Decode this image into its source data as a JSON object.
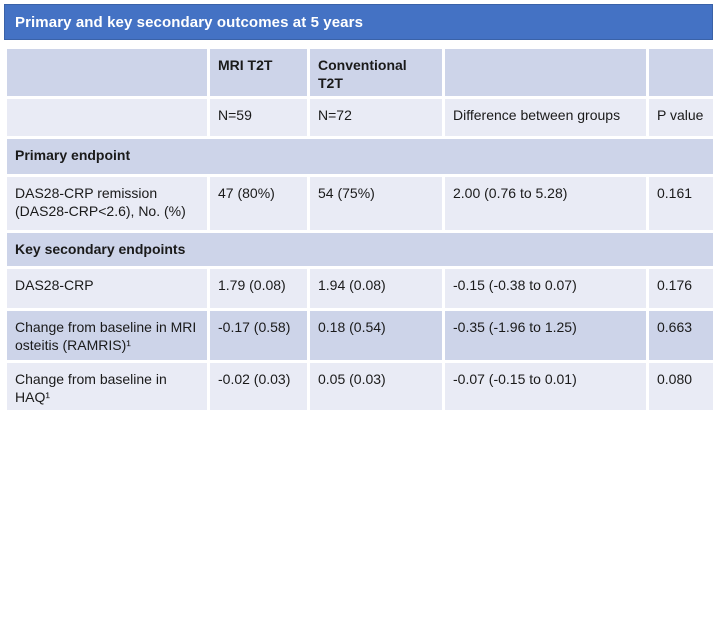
{
  "title_bar": {
    "text": "Primary and key secondary outcomes at 5 years",
    "background_color": "#4472C4",
    "text_color": "#FFFFFF"
  },
  "colors": {
    "accent_blue": "#4472C4",
    "band_dark": "#CDD4E9",
    "band_light": "#E9EBF5",
    "cell_text": "#1A1A1A"
  },
  "table": {
    "column_headers": {
      "group1": "MRI T2T",
      "group2": "Conventional T2T"
    },
    "subheaders": {
      "group1_n": "N=59",
      "group2_n": "N=72",
      "difference": "Difference between groups",
      "pvalue": "P value"
    },
    "sections": {
      "primary": "Primary endpoint",
      "secondary": "Key secondary endpoints"
    },
    "rows": [
      {
        "label": "DAS28-CRP remission (DAS28-CRP<2.6), No. (%)",
        "mri_t2t": "47 (80%)",
        "conventional_t2t": "54 (75%)",
        "difference": "2.00 (0.76 to 5.28)",
        "p_value": "0.161"
      },
      {
        "label": "DAS28-CRP",
        "mri_t2t": "1.79 (0.08)",
        "conventional_t2t": "1.94 (0.08)",
        "difference": "-0.15 (-0.38 to 0.07)",
        "p_value": "0.176"
      },
      {
        "label": "Change from baseline in MRI osteitis (RAMRIS)¹",
        "mri_t2t": "-0.17 (0.58)",
        "conventional_t2t": "0.18 (0.54)",
        "difference": "-0.35 (-1.96 to 1.25)",
        "p_value": "0.663"
      },
      {
        "label": "Change from baseline in HAQ¹",
        "mri_t2t": "-0.02 (0.03)",
        "conventional_t2t": "0.05 (0.03)",
        "difference": "-0.07 (-0.15 to 0.01)",
        "p_value": "0.080"
      }
    ]
  }
}
